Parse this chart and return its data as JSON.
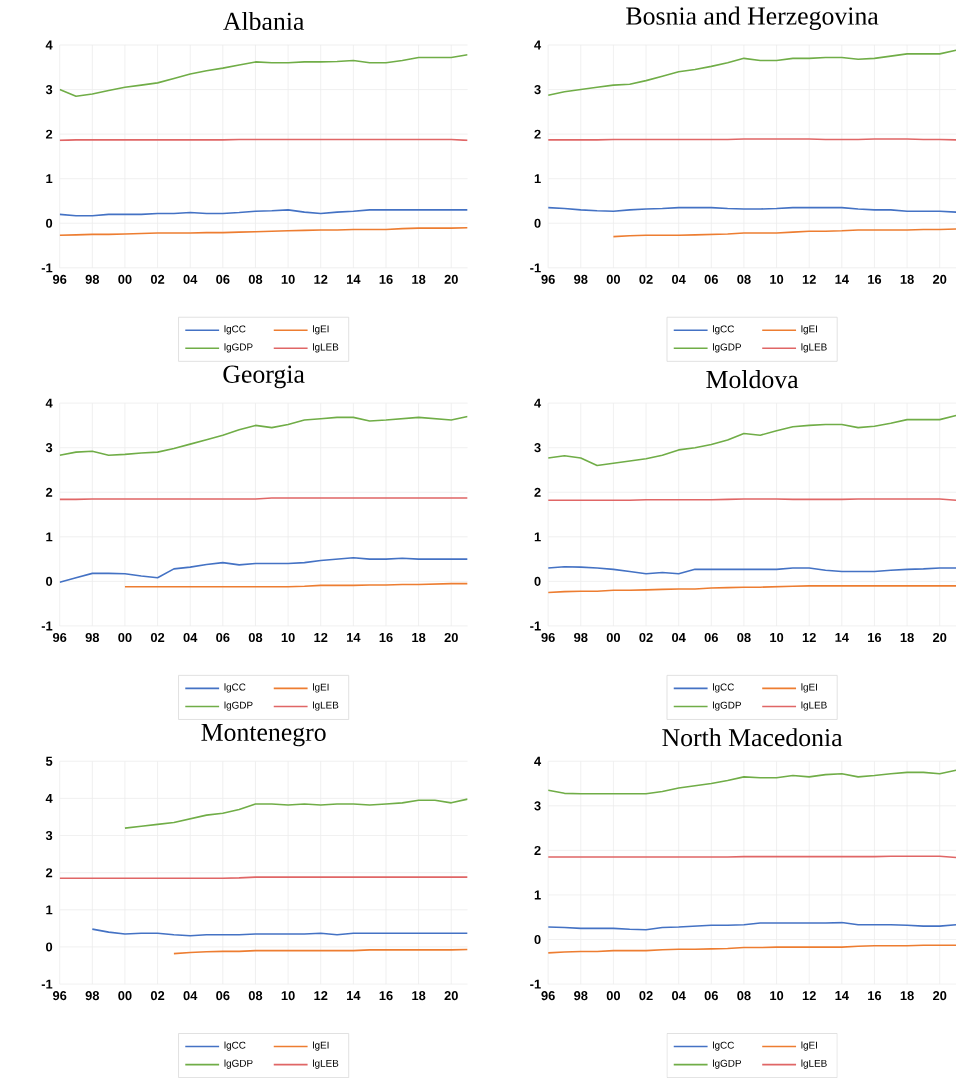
{
  "chart_data": [
    {
      "type": "line",
      "title": "Albania",
      "categories": [
        "96",
        null,
        "98",
        null,
        "00",
        null,
        "02",
        null,
        "04",
        null,
        "06",
        null,
        "08",
        null,
        "10",
        null,
        "12",
        null,
        "14",
        null,
        "16",
        null,
        "18",
        null,
        "20",
        null
      ],
      "ylim": [
        -1,
        4
      ],
      "yticks": [
        -1,
        0,
        1,
        2,
        3,
        4
      ],
      "grid": true,
      "legend": "bottom",
      "series": [
        {
          "name": "lgCC",
          "color": "#4472c4",
          "values": [
            0.2,
            0.17,
            0.17,
            0.2,
            0.2,
            0.2,
            0.22,
            0.22,
            0.24,
            0.22,
            0.22,
            0.24,
            0.27,
            0.28,
            0.3,
            0.25,
            0.22,
            0.25,
            0.27,
            0.3,
            0.3,
            0.3,
            0.3,
            0.3,
            0.3,
            0.3
          ]
        },
        {
          "name": "lgEI",
          "color": "#ed7d31",
          "values": [
            -0.27,
            -0.26,
            -0.25,
            -0.25,
            -0.24,
            -0.23,
            -0.22,
            -0.22,
            -0.22,
            -0.21,
            -0.21,
            -0.2,
            -0.19,
            -0.18,
            -0.17,
            -0.16,
            -0.15,
            -0.15,
            -0.14,
            -0.14,
            -0.14,
            -0.12,
            -0.11,
            -0.11,
            -0.11,
            -0.1
          ]
        },
        {
          "name": "lgGDP",
          "color": "#70ad47",
          "values": [
            3.0,
            2.85,
            2.9,
            2.98,
            3.05,
            3.1,
            3.15,
            3.25,
            3.35,
            3.42,
            3.48,
            3.55,
            3.62,
            3.6,
            3.6,
            3.62,
            3.62,
            3.63,
            3.65,
            3.6,
            3.6,
            3.65,
            3.72,
            3.72,
            3.72,
            3.78
          ]
        },
        {
          "name": "lgLEB",
          "color": "#e06666",
          "values": [
            1.86,
            1.87,
            1.87,
            1.87,
            1.87,
            1.87,
            1.87,
            1.87,
            1.87,
            1.87,
            1.87,
            1.88,
            1.88,
            1.88,
            1.88,
            1.88,
            1.88,
            1.88,
            1.88,
            1.88,
            1.88,
            1.88,
            1.88,
            1.88,
            1.88,
            1.86
          ]
        }
      ]
    },
    {
      "type": "line",
      "title": "Bosnia and Herzegovina",
      "categories": [
        "96",
        null,
        "98",
        null,
        "00",
        null,
        "02",
        null,
        "04",
        null,
        "06",
        null,
        "08",
        null,
        "10",
        null,
        "12",
        null,
        "14",
        null,
        "16",
        null,
        "18",
        null,
        "20",
        null
      ],
      "ylim": [
        -1,
        4
      ],
      "yticks": [
        -1,
        0,
        1,
        2,
        3,
        4
      ],
      "grid": true,
      "legend": "bottom",
      "series": [
        {
          "name": "lgCC",
          "color": "#4472c4",
          "values": [
            0.35,
            0.33,
            0.3,
            0.28,
            0.27,
            0.3,
            0.32,
            0.33,
            0.35,
            0.35,
            0.35,
            0.33,
            0.32,
            0.32,
            0.33,
            0.35,
            0.35,
            0.35,
            0.35,
            0.32,
            0.3,
            0.3,
            0.27,
            0.27,
            0.27,
            0.25
          ]
        },
        {
          "name": "lgEI",
          "color": "#ed7d31",
          "values": [
            null,
            null,
            null,
            null,
            -0.3,
            -0.28,
            -0.27,
            -0.27,
            -0.27,
            -0.26,
            -0.25,
            -0.24,
            -0.22,
            -0.22,
            -0.22,
            -0.2,
            -0.18,
            -0.18,
            -0.17,
            -0.15,
            -0.15,
            -0.15,
            -0.15,
            -0.14,
            -0.14,
            -0.13
          ]
        },
        {
          "name": "lgGDP",
          "color": "#70ad47",
          "values": [
            2.87,
            2.95,
            3.0,
            3.05,
            3.1,
            3.12,
            3.2,
            3.3,
            3.4,
            3.45,
            3.52,
            3.6,
            3.7,
            3.65,
            3.65,
            3.7,
            3.7,
            3.72,
            3.72,
            3.68,
            3.7,
            3.75,
            3.8,
            3.8,
            3.8,
            3.88
          ]
        },
        {
          "name": "lgLEB",
          "color": "#e06666",
          "values": [
            1.87,
            1.87,
            1.87,
            1.87,
            1.88,
            1.88,
            1.88,
            1.88,
            1.88,
            1.88,
            1.88,
            1.88,
            1.89,
            1.89,
            1.89,
            1.89,
            1.89,
            1.88,
            1.88,
            1.88,
            1.89,
            1.89,
            1.89,
            1.88,
            1.88,
            1.87
          ]
        }
      ]
    },
    {
      "type": "line",
      "title": "Georgia",
      "categories": [
        "96",
        null,
        "98",
        null,
        "00",
        null,
        "02",
        null,
        "04",
        null,
        "06",
        null,
        "08",
        null,
        "10",
        null,
        "12",
        null,
        "14",
        null,
        "16",
        null,
        "18",
        null,
        "20",
        null
      ],
      "ylim": [
        -1,
        4
      ],
      "yticks": [
        -1,
        0,
        1,
        2,
        3,
        4
      ],
      "grid": true,
      "legend": "bottom",
      "series": [
        {
          "name": "lgCC",
          "color": "#4472c4",
          "values": [
            -0.02,
            0.08,
            0.18,
            0.18,
            0.17,
            0.12,
            0.08,
            0.28,
            0.32,
            0.38,
            0.42,
            0.37,
            0.4,
            0.4,
            0.4,
            0.42,
            0.47,
            0.5,
            0.53,
            0.5,
            0.5,
            0.52,
            0.5,
            0.5,
            0.5,
            0.5
          ]
        },
        {
          "name": "lgEI",
          "color": "#ed7d31",
          "values": [
            null,
            null,
            null,
            null,
            -0.12,
            -0.12,
            -0.12,
            -0.12,
            -0.12,
            -0.12,
            -0.12,
            -0.12,
            -0.12,
            -0.12,
            -0.12,
            -0.11,
            -0.09,
            -0.09,
            -0.09,
            -0.08,
            -0.08,
            -0.07,
            -0.07,
            -0.06,
            -0.05,
            -0.05
          ]
        },
        {
          "name": "lgGDP",
          "color": "#70ad47",
          "values": [
            2.83,
            2.9,
            2.92,
            2.83,
            2.85,
            2.88,
            2.9,
            2.98,
            3.08,
            3.18,
            3.28,
            3.4,
            3.5,
            3.45,
            3.52,
            3.62,
            3.65,
            3.68,
            3.68,
            3.6,
            3.62,
            3.65,
            3.68,
            3.65,
            3.62,
            3.7
          ]
        },
        {
          "name": "lgLEB",
          "color": "#e06666",
          "values": [
            1.84,
            1.84,
            1.85,
            1.85,
            1.85,
            1.85,
            1.85,
            1.85,
            1.85,
            1.85,
            1.85,
            1.85,
            1.85,
            1.87,
            1.87,
            1.87,
            1.87,
            1.87,
            1.87,
            1.87,
            1.87,
            1.87,
            1.87,
            1.87,
            1.87,
            1.87
          ]
        }
      ]
    },
    {
      "type": "line",
      "title": "Moldova",
      "categories": [
        "96",
        null,
        "98",
        null,
        "00",
        null,
        "02",
        null,
        "04",
        null,
        "06",
        null,
        "08",
        null,
        "10",
        null,
        "12",
        null,
        "14",
        null,
        "16",
        null,
        "18",
        null,
        "20",
        null
      ],
      "ylim": [
        -1,
        4
      ],
      "yticks": [
        -1,
        0,
        1,
        2,
        3,
        4
      ],
      "grid": true,
      "legend": "bottom",
      "series": [
        {
          "name": "lgCC",
          "color": "#4472c4",
          "values": [
            0.3,
            0.33,
            0.32,
            0.3,
            0.27,
            0.22,
            0.17,
            0.2,
            0.17,
            0.27,
            0.27,
            0.27,
            0.27,
            0.27,
            0.27,
            0.3,
            0.3,
            0.25,
            0.22,
            0.22,
            0.22,
            0.25,
            0.27,
            0.28,
            0.3,
            0.3
          ]
        },
        {
          "name": "lgEI",
          "color": "#ed7d31",
          "values": [
            -0.25,
            -0.23,
            -0.22,
            -0.22,
            -0.2,
            -0.2,
            -0.19,
            -0.18,
            -0.17,
            -0.17,
            -0.15,
            -0.14,
            -0.13,
            -0.13,
            -0.12,
            -0.11,
            -0.1,
            -0.1,
            -0.1,
            -0.1,
            -0.1,
            -0.1,
            -0.1,
            -0.1,
            -0.1,
            -0.1
          ]
        },
        {
          "name": "lgGDP",
          "color": "#70ad47",
          "values": [
            2.77,
            2.82,
            2.77,
            2.6,
            2.65,
            2.7,
            2.75,
            2.83,
            2.95,
            3.0,
            3.07,
            3.17,
            3.32,
            3.28,
            3.38,
            3.47,
            3.5,
            3.52,
            3.52,
            3.45,
            3.48,
            3.55,
            3.63,
            3.63,
            3.63,
            3.72
          ]
        },
        {
          "name": "lgLEB",
          "color": "#e06666",
          "values": [
            1.82,
            1.82,
            1.82,
            1.82,
            1.82,
            1.82,
            1.83,
            1.83,
            1.83,
            1.83,
            1.83,
            1.84,
            1.85,
            1.85,
            1.85,
            1.84,
            1.84,
            1.84,
            1.84,
            1.85,
            1.85,
            1.85,
            1.85,
            1.85,
            1.85,
            1.82
          ]
        }
      ]
    },
    {
      "type": "line",
      "title": "Montenegro",
      "categories": [
        "96",
        null,
        "98",
        null,
        "00",
        null,
        "02",
        null,
        "04",
        null,
        "06",
        null,
        "08",
        null,
        "10",
        null,
        "12",
        null,
        "14",
        null,
        "16",
        null,
        "18",
        null,
        "20",
        null
      ],
      "ylim": [
        -1,
        5
      ],
      "yticks": [
        -1,
        0,
        1,
        2,
        3,
        4,
        5
      ],
      "grid": true,
      "legend": "bottom",
      "series": [
        {
          "name": "lgCC",
          "color": "#4472c4",
          "values": [
            null,
            null,
            0.48,
            0.4,
            0.35,
            0.37,
            0.37,
            0.33,
            0.3,
            0.33,
            0.33,
            0.33,
            0.35,
            0.35,
            0.35,
            0.35,
            0.37,
            0.33,
            0.37,
            0.37,
            0.37,
            0.37,
            0.37,
            0.37,
            0.37,
            0.37
          ]
        },
        {
          "name": "lgEI",
          "color": "#ed7d31",
          "values": [
            null,
            null,
            null,
            null,
            null,
            null,
            null,
            -0.18,
            -0.15,
            -0.13,
            -0.12,
            -0.12,
            -0.1,
            -0.1,
            -0.1,
            -0.1,
            -0.1,
            -0.1,
            -0.1,
            -0.08,
            -0.08,
            -0.08,
            -0.08,
            -0.08,
            -0.08,
            -0.07
          ]
        },
        {
          "name": "lgGDP",
          "color": "#70ad47",
          "values": [
            null,
            null,
            null,
            null,
            3.2,
            3.25,
            3.3,
            3.35,
            3.45,
            3.55,
            3.6,
            3.7,
            3.85,
            3.85,
            3.82,
            3.85,
            3.82,
            3.85,
            3.85,
            3.82,
            3.85,
            3.88,
            3.95,
            3.95,
            3.88,
            3.98
          ]
        },
        {
          "name": "lgLEB",
          "color": "#e06666",
          "values": [
            1.85,
            1.85,
            1.85,
            1.85,
            1.85,
            1.85,
            1.85,
            1.85,
            1.85,
            1.85,
            1.85,
            1.86,
            1.88,
            1.88,
            1.88,
            1.88,
            1.88,
            1.88,
            1.88,
            1.88,
            1.88,
            1.88,
            1.88,
            1.88,
            1.88,
            1.88
          ]
        }
      ]
    },
    {
      "type": "line",
      "title": "North Macedonia",
      "categories": [
        "96",
        null,
        "98",
        null,
        "00",
        null,
        "02",
        null,
        "04",
        null,
        "06",
        null,
        "08",
        null,
        "10",
        null,
        "12",
        null,
        "14",
        null,
        "16",
        null,
        "18",
        null,
        "20",
        null
      ],
      "ylim": [
        -1,
        4
      ],
      "yticks": [
        -1,
        0,
        1,
        2,
        3,
        4
      ],
      "grid": true,
      "legend": "bottom",
      "series": [
        {
          "name": "lgCC",
          "color": "#4472c4",
          "values": [
            0.28,
            0.27,
            0.25,
            0.25,
            0.25,
            0.23,
            0.22,
            0.27,
            0.28,
            0.3,
            0.32,
            0.32,
            0.33,
            0.37,
            0.37,
            0.37,
            0.37,
            0.37,
            0.38,
            0.33,
            0.33,
            0.33,
            0.32,
            0.3,
            0.3,
            0.33
          ]
        },
        {
          "name": "lgEI",
          "color": "#ed7d31",
          "values": [
            -0.3,
            -0.28,
            -0.27,
            -0.27,
            -0.25,
            -0.25,
            -0.25,
            -0.23,
            -0.22,
            -0.22,
            -0.21,
            -0.2,
            -0.18,
            -0.18,
            -0.17,
            -0.17,
            -0.17,
            -0.17,
            -0.17,
            -0.15,
            -0.14,
            -0.14,
            -0.14,
            -0.13,
            -0.13,
            -0.13
          ]
        },
        {
          "name": "lgGDP",
          "color": "#70ad47",
          "values": [
            3.35,
            3.28,
            3.27,
            3.27,
            3.27,
            3.27,
            3.27,
            3.32,
            3.4,
            3.45,
            3.5,
            3.57,
            3.65,
            3.63,
            3.63,
            3.68,
            3.65,
            3.7,
            3.72,
            3.65,
            3.68,
            3.72,
            3.75,
            3.75,
            3.72,
            3.8
          ]
        },
        {
          "name": "lgLEB",
          "color": "#e06666",
          "values": [
            1.85,
            1.85,
            1.85,
            1.85,
            1.85,
            1.85,
            1.85,
            1.85,
            1.85,
            1.85,
            1.85,
            1.85,
            1.86,
            1.86,
            1.86,
            1.86,
            1.86,
            1.86,
            1.86,
            1.86,
            1.86,
            1.87,
            1.87,
            1.87,
            1.87,
            1.84
          ]
        }
      ]
    }
  ]
}
